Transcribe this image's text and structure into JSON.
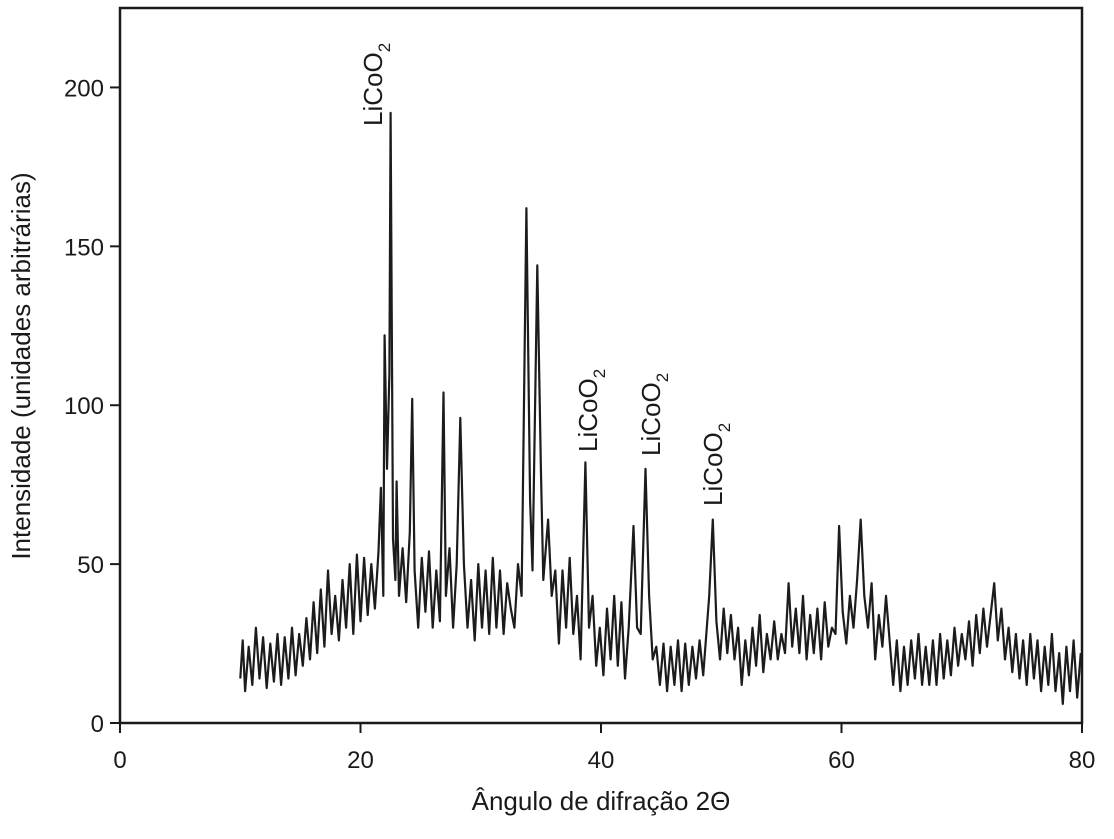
{
  "chart_data": {
    "type": "line",
    "x_label": "Ângulo de difração  2Θ",
    "y_label": "Intensidade (unidades arbitrárias)",
    "xlim": [
      0,
      80
    ],
    "xticks": [
      0,
      20,
      40,
      60,
      80
    ],
    "ylim": [
      0,
      225
    ],
    "yticks": [
      0,
      50,
      100,
      150,
      200
    ],
    "annotations": [
      {
        "text": "LiCoO",
        "subscript": "2"
      },
      {
        "text": "LiCoO",
        "subscript": "2"
      },
      {
        "text": "LiCoO",
        "subscript": "2"
      },
      {
        "text": "LiCoO",
        "subscript": "2"
      }
    ],
    "x": [
      10.0,
      10.2,
      10.4,
      10.7,
      11.0,
      11.3,
      11.6,
      11.9,
      12.2,
      12.5,
      12.8,
      13.1,
      13.4,
      13.7,
      14.0,
      14.3,
      14.6,
      14.9,
      15.2,
      15.5,
      15.8,
      16.1,
      16.4,
      16.7,
      17.0,
      17.3,
      17.6,
      17.9,
      18.2,
      18.5,
      18.8,
      19.1,
      19.4,
      19.7,
      20.0,
      20.3,
      20.6,
      20.9,
      21.2,
      21.5,
      21.7,
      21.9,
      22.0,
      22.2,
      22.4,
      22.5,
      22.7,
      22.9,
      23.0,
      23.2,
      23.5,
      23.8,
      24.1,
      24.3,
      24.5,
      24.8,
      25.1,
      25.4,
      25.7,
      26.0,
      26.3,
      26.6,
      26.9,
      27.1,
      27.4,
      27.7,
      28.0,
      28.3,
      28.6,
      28.9,
      29.2,
      29.5,
      29.8,
      30.1,
      30.4,
      30.7,
      31.0,
      31.3,
      31.6,
      31.9,
      32.2,
      32.5,
      32.8,
      33.1,
      33.4,
      33.8,
      34.1,
      34.3,
      34.7,
      35.0,
      35.2,
      35.6,
      35.9,
      36.2,
      36.5,
      36.8,
      37.1,
      37.4,
      37.7,
      38.0,
      38.3,
      38.7,
      39.0,
      39.3,
      39.6,
      39.9,
      40.2,
      40.5,
      40.8,
      41.1,
      41.4,
      41.7,
      42.0,
      42.3,
      42.7,
      43.0,
      43.3,
      43.7,
      44.0,
      44.3,
      44.6,
      44.9,
      45.2,
      45.5,
      45.8,
      46.1,
      46.4,
      46.7,
      47.0,
      47.3,
      47.6,
      47.9,
      48.2,
      48.5,
      48.8,
      49.0,
      49.3,
      49.6,
      49.9,
      50.2,
      50.5,
      50.8,
      51.1,
      51.4,
      51.7,
      52.0,
      52.3,
      52.6,
      52.9,
      53.2,
      53.5,
      53.8,
      54.1,
      54.4,
      54.7,
      55.0,
      55.3,
      55.6,
      55.9,
      56.2,
      56.5,
      56.8,
      57.1,
      57.4,
      57.7,
      58.0,
      58.3,
      58.6,
      58.9,
      59.2,
      59.5,
      59.8,
      60.1,
      60.4,
      60.7,
      61.0,
      61.3,
      61.6,
      61.9,
      62.2,
      62.5,
      62.8,
      63.1,
      63.4,
      63.7,
      64.0,
      64.3,
      64.6,
      64.9,
      65.2,
      65.5,
      65.8,
      66.1,
      66.4,
      66.7,
      67.0,
      67.3,
      67.6,
      67.9,
      68.2,
      68.5,
      68.8,
      69.1,
      69.4,
      69.7,
      70.0,
      70.3,
      70.6,
      70.9,
      71.2,
      71.5,
      71.8,
      72.1,
      72.4,
      72.7,
      73.0,
      73.3,
      73.6,
      73.9,
      74.2,
      74.5,
      74.8,
      75.1,
      75.4,
      75.7,
      76.0,
      76.3,
      76.6,
      76.9,
      77.2,
      77.5,
      77.8,
      78.1,
      78.4,
      78.7,
      79.0,
      79.3,
      79.6,
      79.9
    ],
    "series": [
      {
        "color": "#1c1c1c",
        "values": [
          14,
          26,
          10,
          24,
          12,
          30,
          14,
          27,
          11,
          25,
          13,
          28,
          12,
          27,
          14,
          30,
          15,
          28,
          18,
          33,
          20,
          38,
          22,
          42,
          24,
          48,
          28,
          40,
          26,
          45,
          30,
          50,
          28,
          53,
          32,
          52,
          34,
          50,
          36,
          54,
          74,
          40,
          122,
          80,
          110,
          192,
          58,
          45,
          76,
          40,
          55,
          38,
          60,
          102,
          48,
          30,
          52,
          35,
          54,
          30,
          48,
          32,
          104,
          40,
          55,
          30,
          50,
          96,
          50,
          30,
          45,
          26,
          50,
          30,
          48,
          28,
          52,
          30,
          48,
          28,
          44,
          36,
          30,
          50,
          40,
          162,
          70,
          48,
          144,
          80,
          45,
          64,
          40,
          48,
          25,
          48,
          30,
          52,
          28,
          40,
          20,
          82,
          30,
          40,
          18,
          30,
          15,
          36,
          20,
          40,
          18,
          38,
          14,
          30,
          62,
          30,
          28,
          80,
          40,
          20,
          24,
          12,
          25,
          10,
          24,
          12,
          26,
          10,
          25,
          12,
          24,
          14,
          26,
          15,
          30,
          40,
          64,
          32,
          20,
          36,
          22,
          34,
          20,
          30,
          12,
          26,
          15,
          30,
          18,
          34,
          16,
          28,
          20,
          32,
          20,
          28,
          22,
          44,
          24,
          36,
          22,
          40,
          20,
          34,
          22,
          36,
          20,
          38,
          24,
          30,
          28,
          62,
          35,
          25,
          40,
          30,
          45,
          64,
          40,
          30,
          44,
          20,
          34,
          24,
          40,
          26,
          12,
          26,
          10,
          24,
          12,
          26,
          14,
          28,
          12,
          24,
          12,
          26,
          12,
          28,
          14,
          26,
          15,
          30,
          18,
          28,
          20,
          32,
          18,
          34,
          22,
          36,
          24,
          34,
          44,
          26,
          36,
          20,
          30,
          16,
          28,
          14,
          26,
          12,
          28,
          14,
          26,
          10,
          24,
          12,
          28,
          10,
          22,
          6,
          24,
          10,
          26,
          8,
          22
        ]
      }
    ]
  }
}
